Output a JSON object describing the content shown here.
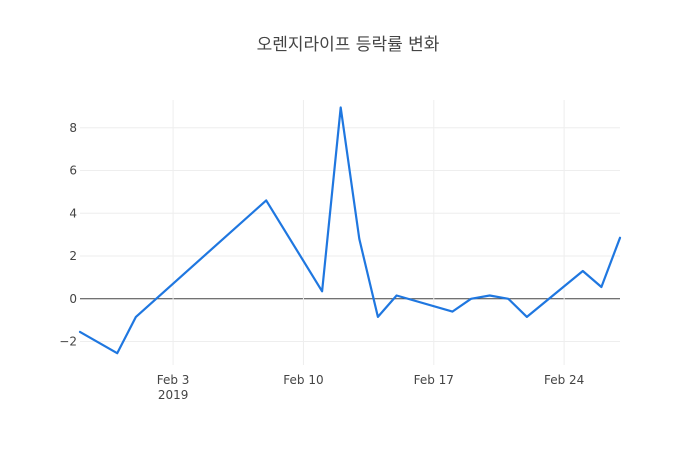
{
  "chart_data": {
    "type": "line",
    "title": "오렌지라이프 등락률 변화",
    "xlabel": "",
    "ylabel": "",
    "xlim": [
      "2019-01-29",
      "2019-02-27"
    ],
    "ylim": [
      -3.1,
      9.3
    ],
    "x_ticks": [
      {
        "date": "2019-02-03",
        "label": "Feb 3",
        "sublabel": "2019"
      },
      {
        "date": "2019-02-10",
        "label": "Feb 10",
        "sublabel": ""
      },
      {
        "date": "2019-02-17",
        "label": "Feb 17",
        "sublabel": ""
      },
      {
        "date": "2019-02-24",
        "label": "Feb 24",
        "sublabel": ""
      }
    ],
    "y_ticks": [
      {
        "value": -2,
        "label": "−2"
      },
      {
        "value": 0,
        "label": "0"
      },
      {
        "value": 2,
        "label": "2"
      },
      {
        "value": 4,
        "label": "4"
      },
      {
        "value": 6,
        "label": "6"
      },
      {
        "value": 8,
        "label": "8"
      }
    ],
    "grid": true,
    "series": [
      {
        "color": "#1f77e0",
        "x": [
          "2019-01-29",
          "2019-01-31",
          "2019-02-01",
          "2019-02-08",
          "2019-02-11",
          "2019-02-12",
          "2019-02-13",
          "2019-02-14",
          "2019-02-15",
          "2019-02-18",
          "2019-02-19",
          "2019-02-20",
          "2019-02-21",
          "2019-02-22",
          "2019-02-25",
          "2019-02-26",
          "2019-02-27"
        ],
        "y": [
          -1.55,
          -2.55,
          -0.85,
          4.6,
          0.35,
          8.95,
          2.8,
          -0.85,
          0.15,
          -0.6,
          0.0,
          0.15,
          0.0,
          -0.85,
          1.3,
          0.55,
          2.85
        ]
      }
    ]
  }
}
